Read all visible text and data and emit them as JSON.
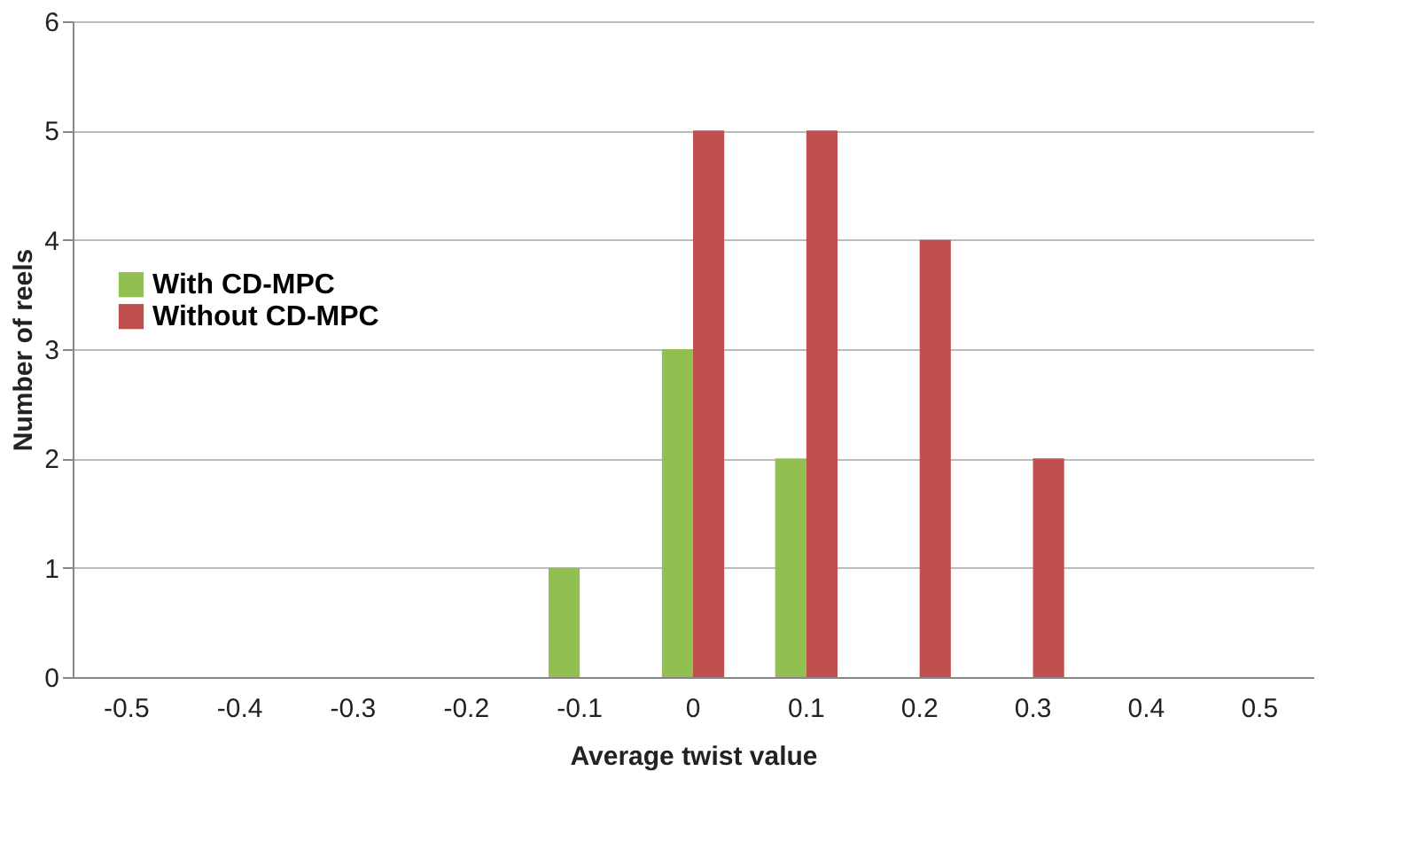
{
  "chart_data": {
    "type": "bar",
    "xlabel": "Average twist value",
    "ylabel": "Number of reels",
    "categories": [
      "-0.5",
      "-0.4",
      "-0.3",
      "-0.2",
      "-0.1",
      "0",
      "0.1",
      "0.2",
      "0.3",
      "0.4",
      "0.5"
    ],
    "series": [
      {
        "name": "With CD-MPC",
        "color": "#92c050",
        "values": [
          0,
          0,
          0,
          0,
          1,
          3,
          2,
          0,
          0,
          0,
          0
        ]
      },
      {
        "name": "Without CD-MPC",
        "color": "#c0504d",
        "values": [
          0,
          0,
          0,
          0,
          0,
          5,
          5,
          4,
          2,
          0,
          0
        ]
      }
    ],
    "ylim": [
      0,
      6
    ],
    "yticks": [
      0,
      1,
      2,
      3,
      4,
      5,
      6
    ],
    "grid": "y",
    "legend": "left"
  }
}
